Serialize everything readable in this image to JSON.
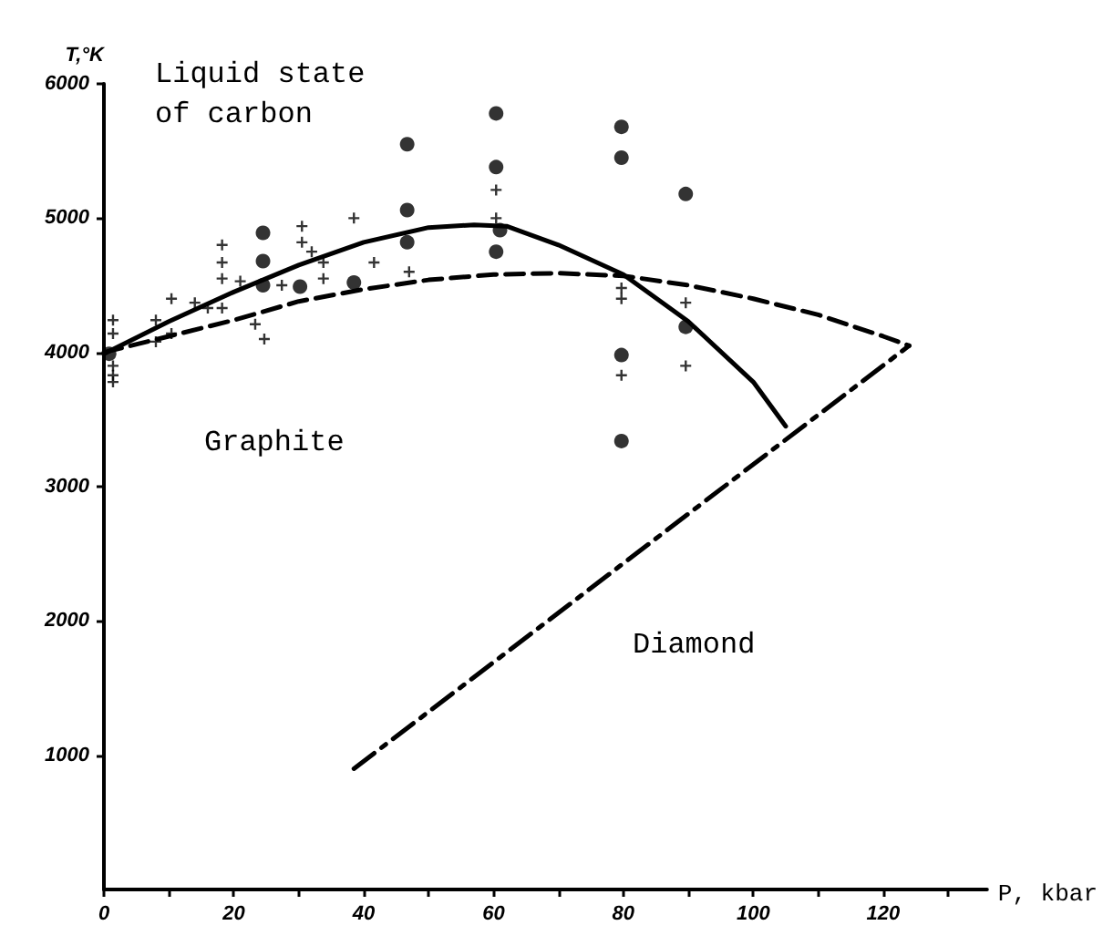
{
  "chart_data": {
    "type": "scatter",
    "xlabel": "P, kbar",
    "ylabel": "T,°K",
    "annotations": [
      "Liquid state of carbon",
      "Graphite",
      "Diamond"
    ],
    "xlim": [
      0,
      136
    ],
    "ylim": [
      0,
      6000
    ],
    "xticks": [
      0,
      {
        "value": 10,
        "label": null
      },
      20,
      {
        "value": 30,
        "label": null
      },
      40,
      {
        "value": 50,
        "label": null
      },
      60,
      {
        "value": 70,
        "label": null
      },
      80,
      {
        "value": 90,
        "label": null
      },
      100,
      {
        "value": 110,
        "label": null
      },
      120,
      {
        "value": 130,
        "label": null
      }
    ],
    "yticks": [
      1000,
      2000,
      3000,
      4000,
      5000,
      6000
    ],
    "grid": false,
    "series": [
      {
        "marker": "circle",
        "color": "#000000",
        "x": [
          0.8,
          24.5,
          24.5,
          24.5,
          30.2,
          38.5,
          46.7,
          46.7,
          46.7,
          60.4,
          60.4,
          60.4,
          61,
          79.7,
          79.7,
          79.7,
          79.7,
          89.6,
          89.6
        ],
        "values": [
          3990,
          4890,
          4680,
          4500,
          4490,
          4520,
          5550,
          5060,
          4820,
          5780,
          5380,
          4750,
          4910,
          5680,
          5450,
          3980,
          3340,
          5180,
          4190
        ]
      },
      {
        "marker": "cross",
        "color": "#000000",
        "x": [
          1.4,
          1.4,
          1.4,
          1.4,
          1.4,
          8,
          8,
          10.4,
          10.4,
          14,
          16,
          18.2,
          18.2,
          18.2,
          18.2,
          21,
          23.3,
          24.7,
          27.4,
          30.5,
          30.5,
          32,
          33.8,
          33.8,
          38.5,
          41.6,
          47,
          60.4,
          60.4,
          79.7,
          79.7,
          79.7,
          89.6,
          89.6
        ],
        "values": [
          4240,
          4140,
          3900,
          3830,
          3780,
          4240,
          4080,
          4400,
          4140,
          4370,
          4330,
          4800,
          4670,
          4550,
          4330,
          4530,
          4210,
          4100,
          4500,
          4940,
          4820,
          4750,
          4670,
          4550,
          5000,
          4670,
          4600,
          5210,
          5000,
          4480,
          4400,
          3830,
          4370,
          3900
        ]
      },
      {
        "type": "line",
        "line_style": "solid",
        "color": "#000000",
        "x": [
          0,
          10,
          20,
          30,
          40,
          50,
          57,
          62,
          70,
          80,
          90,
          100,
          105
        ],
        "values": [
          3990,
          4230,
          4450,
          4650,
          4820,
          4930,
          4950,
          4940,
          4800,
          4580,
          4230,
          3780,
          3450
        ]
      },
      {
        "type": "line",
        "line_style": "dashed",
        "color": "#000000",
        "x": [
          0,
          10,
          20,
          30,
          40,
          50,
          60,
          70,
          80,
          90,
          100,
          110,
          120,
          124
        ],
        "values": [
          4000,
          4120,
          4240,
          4380,
          4470,
          4540,
          4580,
          4590,
          4570,
          4500,
          4400,
          4280,
          4120,
          4050
        ]
      },
      {
        "type": "line",
        "line_style": "dashdot",
        "color": "#000000",
        "x": [
          38.5,
          124
        ],
        "values": [
          900,
          4050
        ]
      }
    ]
  }
}
